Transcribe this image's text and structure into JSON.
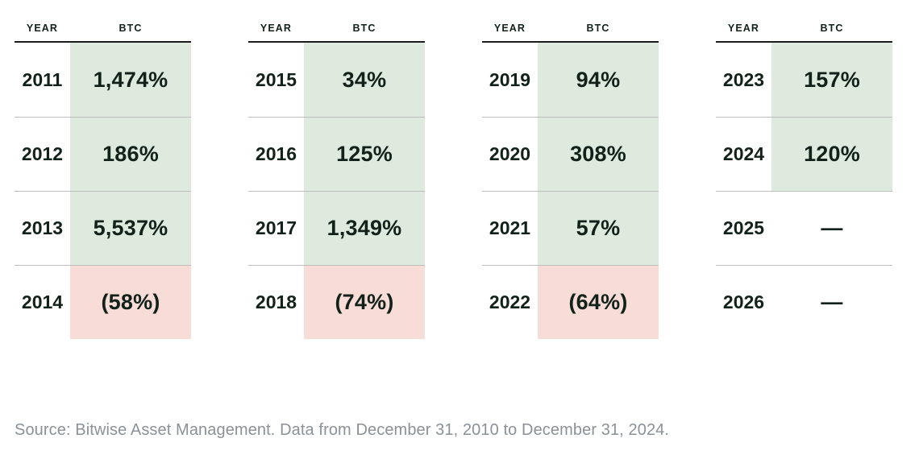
{
  "colors": {
    "positive_bg": "#deeadd",
    "negative_bg": "#f8dcd7",
    "ink": "#12211a",
    "divider": "#bdbdbd",
    "header_rule": "#1c1c1c",
    "footer_text": "#8b9197",
    "page_bg": "#ffffff"
  },
  "tables": [
    {
      "headers": {
        "year": "YEAR",
        "value": "BTC"
      },
      "rows": [
        {
          "year": "2011",
          "value": "1,474%",
          "type": "positive"
        },
        {
          "year": "2012",
          "value": "186%",
          "type": "positive"
        },
        {
          "year": "2013",
          "value": "5,537%",
          "type": "positive"
        },
        {
          "year": "2014",
          "value": "(58%)",
          "type": "negative"
        }
      ]
    },
    {
      "headers": {
        "year": "YEAR",
        "value": "BTC"
      },
      "rows": [
        {
          "year": "2015",
          "value": "34%",
          "type": "positive"
        },
        {
          "year": "2016",
          "value": "125%",
          "type": "positive"
        },
        {
          "year": "2017",
          "value": "1,349%",
          "type": "positive"
        },
        {
          "year": "2018",
          "value": "(74%)",
          "type": "negative"
        }
      ]
    },
    {
      "headers": {
        "year": "YEAR",
        "value": "BTC"
      },
      "rows": [
        {
          "year": "2019",
          "value": "94%",
          "type": "positive"
        },
        {
          "year": "2020",
          "value": "308%",
          "type": "positive"
        },
        {
          "year": "2021",
          "value": "57%",
          "type": "positive"
        },
        {
          "year": "2022",
          "value": "(64%)",
          "type": "negative"
        }
      ]
    },
    {
      "headers": {
        "year": "YEAR",
        "value": "BTC"
      },
      "rows": [
        {
          "year": "2023",
          "value": "157%",
          "type": "positive"
        },
        {
          "year": "2024",
          "value": "120%",
          "type": "positive"
        },
        {
          "year": "2025",
          "value": "—",
          "type": "none"
        },
        {
          "year": "2026",
          "value": "—",
          "type": "none"
        }
      ]
    }
  ],
  "footer": {
    "source": "Source: Bitwise Asset Management. Data from December 31, 2010 to December 31, 2024."
  },
  "chart_data": {
    "type": "table",
    "title": "BTC calendar-year returns",
    "columns": [
      "YEAR",
      "BTC"
    ],
    "rows": [
      {
        "year": 2011,
        "btc_return_pct": 1474
      },
      {
        "year": 2012,
        "btc_return_pct": 186
      },
      {
        "year": 2013,
        "btc_return_pct": 5537
      },
      {
        "year": 2014,
        "btc_return_pct": -58
      },
      {
        "year": 2015,
        "btc_return_pct": 34
      },
      {
        "year": 2016,
        "btc_return_pct": 125
      },
      {
        "year": 2017,
        "btc_return_pct": 1349
      },
      {
        "year": 2018,
        "btc_return_pct": -74
      },
      {
        "year": 2019,
        "btc_return_pct": 94
      },
      {
        "year": 2020,
        "btc_return_pct": 308
      },
      {
        "year": 2021,
        "btc_return_pct": 57
      },
      {
        "year": 2022,
        "btc_return_pct": -64
      },
      {
        "year": 2023,
        "btc_return_pct": 157
      },
      {
        "year": 2024,
        "btc_return_pct": 120
      },
      {
        "year": 2025,
        "btc_return_pct": null
      },
      {
        "year": 2026,
        "btc_return_pct": null
      }
    ],
    "notes": "Negative returns shown in parentheses on red background; positive returns on green background; years with no data shown as em dash on white."
  }
}
